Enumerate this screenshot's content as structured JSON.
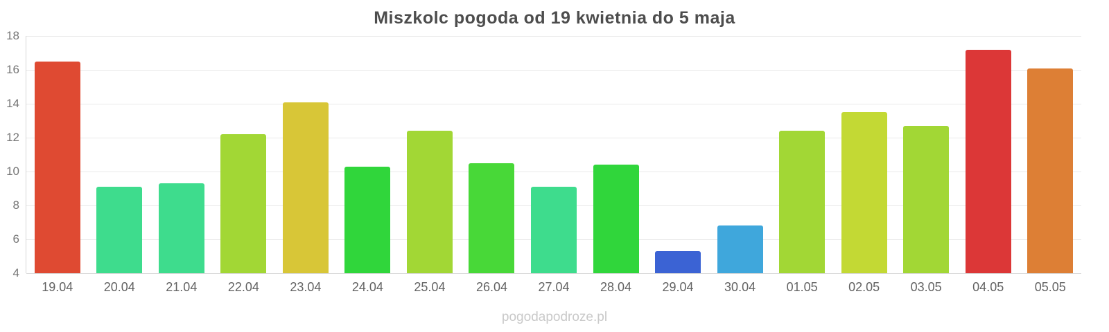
{
  "title": "Miszkolc pogoda od 19 kwietnia do 5 maja",
  "footer": "pogodapodroze.pl",
  "chart_data": {
    "type": "bar",
    "title": "Miszkolc pogoda od 19 kwietnia do 5 maja",
    "categories": [
      "19.04",
      "20.04",
      "21.04",
      "22.04",
      "23.04",
      "24.04",
      "25.04",
      "26.04",
      "27.04",
      "28.04",
      "29.04",
      "30.04",
      "01.05",
      "02.05",
      "03.05",
      "04.05",
      "05.05"
    ],
    "values": [
      16.5,
      9.1,
      9.3,
      12.2,
      14.1,
      10.3,
      12.4,
      10.5,
      9.1,
      10.4,
      5.3,
      6.8,
      12.4,
      13.5,
      12.7,
      17.2,
      16.1
    ],
    "bar_colors": [
      "#df4a32",
      "#3edc8d",
      "#3edc8d",
      "#a2d735",
      "#d8c637",
      "#30d63b",
      "#a2d735",
      "#48d838",
      "#3edc8d",
      "#30d63b",
      "#3b63d4",
      "#3fa7dc",
      "#a2d735",
      "#c3d934",
      "#a2d735",
      "#dc3737",
      "#dd7f35"
    ],
    "xlabel": "",
    "ylabel": "",
    "ylim": [
      4,
      18
    ],
    "yticks": [
      4,
      6,
      8,
      10,
      12,
      14,
      16,
      18
    ],
    "grid": true,
    "legend": "none",
    "colors_meaning": "temperature-scale",
    "text_color_title": "#4d4d4d",
    "text_color_ticks": "#757575",
    "watermark_color": "#c9c9c9"
  }
}
